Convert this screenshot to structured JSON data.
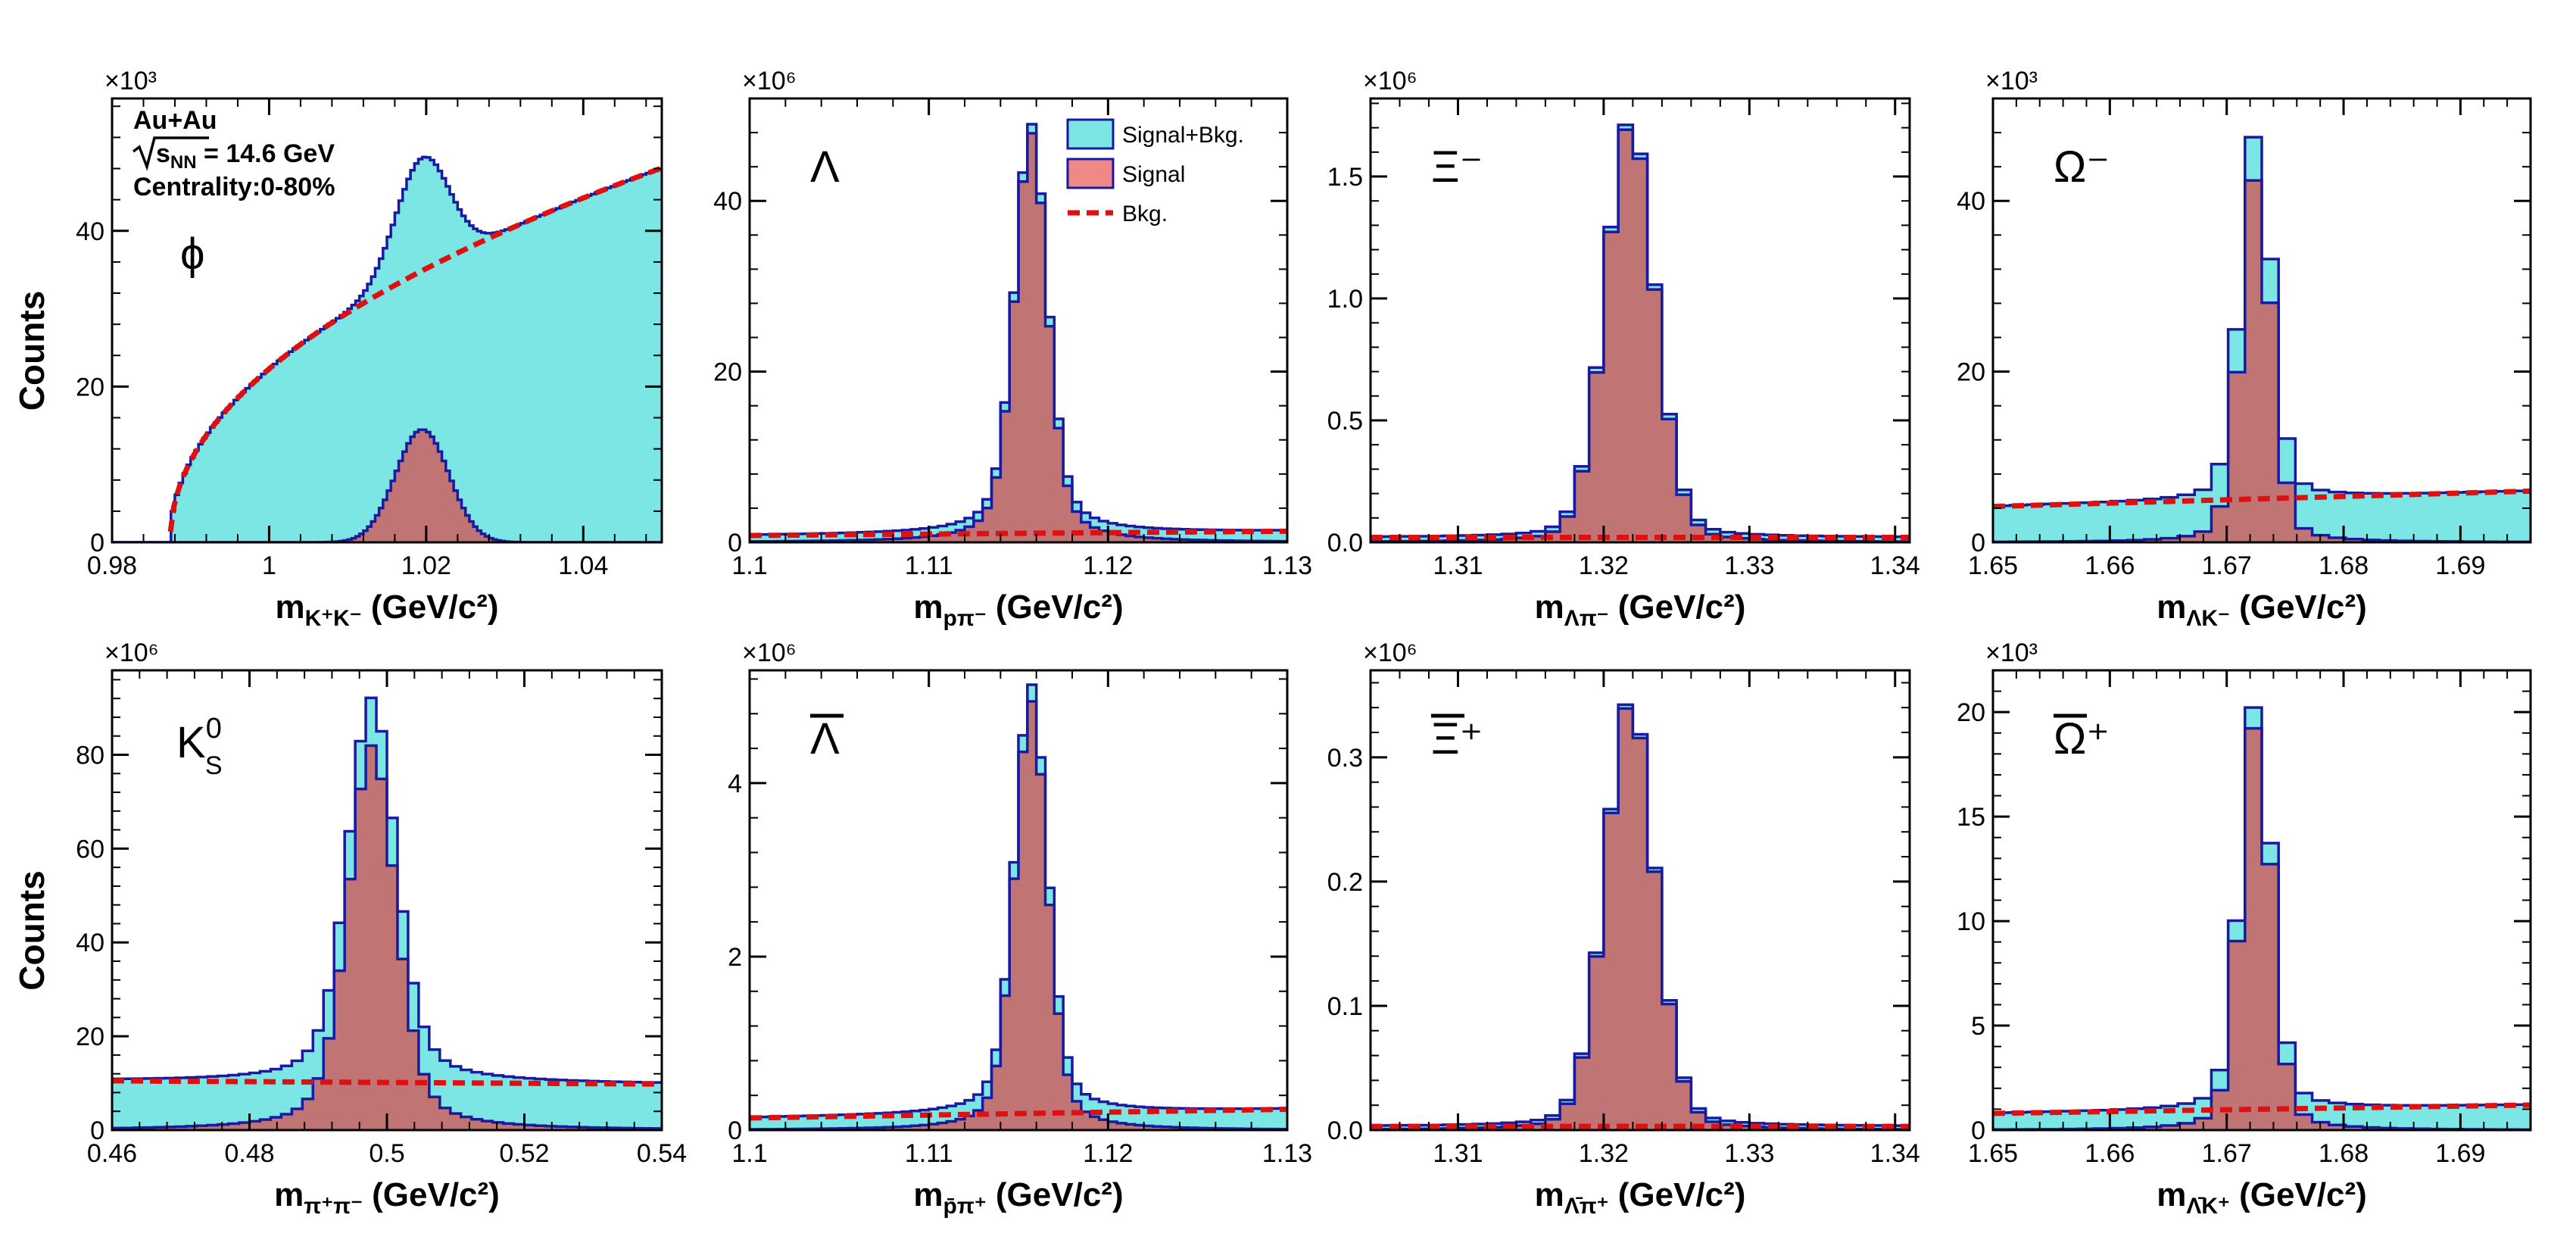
{
  "figure": {
    "legend": {
      "signal_bkg": "Signal+Bkg.",
      "signal": "Signal",
      "bkg": "Bkg."
    },
    "colors": {
      "signal_bkg_fill": "#7ce6e4",
      "signal_fill": "#c07474",
      "outline": "#1a1aa0",
      "bkg_line": "#dd1111",
      "legend_signal_fill": "#f08888"
    }
  },
  "chart_data": [
    {
      "id": "phi",
      "type": "histogram",
      "xlim": [
        0.98,
        1.05
      ],
      "ylim": [
        0,
        57
      ],
      "scale_label": "×10³",
      "xticks": [
        0.98,
        1,
        1.02,
        1.04
      ],
      "xtick_labels": [
        "0.98",
        "1",
        "1.02",
        "1.04"
      ],
      "yticks": [
        0,
        20,
        40
      ],
      "ytick_labels": [
        "0",
        "20",
        "40"
      ],
      "ylabel": "Counts",
      "xlabel": {
        "main": "m",
        "sub": "K⁺K⁻",
        "unit": " (GeV/c²)"
      },
      "particle": "ϕ",
      "info": {
        "line1": "Au+Au",
        "line2_root": "s",
        "line2_sub": "NN",
        "line2_rest": " = 14.6 GeV",
        "line3": "Centrality:0-80%"
      },
      "peak": {
        "mu": 1.0195,
        "sigma": 0.0034,
        "amp": 14.5
      },
      "background": {
        "shape": "sqrt",
        "x0": 0.9874,
        "k": 6.6,
        "p": 0.48,
        "endpoint": 50
      },
      "bins": 140
    },
    {
      "id": "lambda",
      "type": "histogram",
      "xlim": [
        1.1,
        1.13
      ],
      "ylim": [
        0,
        52
      ],
      "scale_label": "×10⁶",
      "xticks": [
        1.1,
        1.11,
        1.12,
        1.13
      ],
      "xtick_labels": [
        "1.1",
        "1.11",
        "1.12",
        "1.13"
      ],
      "yticks": [
        0,
        20,
        40
      ],
      "ytick_labels": [
        "0",
        "20",
        "40"
      ],
      "ylabel": "",
      "xlabel": {
        "main": "m",
        "sub": "pπ⁻",
        "unit": " (GeV/c²)"
      },
      "particle": "Λ",
      "peak": {
        "mu": 1.1157,
        "sigma": 0.0009,
        "gamma": 0.0012,
        "amp": 48,
        "frac_lor": 0.35
      },
      "background": {
        "shape": "linear",
        "y0": 0.8,
        "y1": 1.3
      },
      "bins": 60,
      "legend": true
    },
    {
      "id": "xi",
      "type": "histogram",
      "xlim": [
        1.304,
        1.341
      ],
      "ylim": [
        0,
        1.82
      ],
      "scale_label": "×10⁶",
      "xticks": [
        1.31,
        1.32,
        1.33,
        1.34
      ],
      "xtick_labels": [
        "1.31",
        "1.32",
        "1.33",
        "1.34"
      ],
      "yticks": [
        0,
        0.5,
        1,
        1.5
      ],
      "ytick_labels": [
        "0.0",
        "0.5",
        "1.0",
        "1.5"
      ],
      "ylabel": "",
      "xlabel": {
        "main": "m",
        "sub": "Λπ⁻",
        "unit": " (GeV/c²)"
      },
      "particle": "Ξ⁻",
      "peak": {
        "mu": 1.3218,
        "sigma": 0.0017,
        "gamma": 0.002,
        "amp": 1.72,
        "frac_lor": 0.15
      },
      "background": {
        "shape": "linear",
        "y0": 0.02,
        "y1": 0.02
      },
      "bins": 37
    },
    {
      "id": "omega",
      "type": "histogram",
      "xlim": [
        1.65,
        1.696
      ],
      "ylim": [
        0,
        52
      ],
      "scale_label": "×10³",
      "xticks": [
        1.65,
        1.66,
        1.67,
        1.68,
        1.69
      ],
      "xtick_labels": [
        "1.65",
        "1.66",
        "1.67",
        "1.68",
        "1.69"
      ],
      "yticks": [
        0,
        20,
        40
      ],
      "ytick_labels": [
        "0",
        "20",
        "40"
      ],
      "ylabel": "",
      "xlabel": {
        "main": "m",
        "sub": "ΛK⁻",
        "unit": " (GeV/c²)"
      },
      "particle": "Ω⁻",
      "peak": {
        "mu": 1.6725,
        "sigma": 0.0013,
        "gamma": 0.0018,
        "amp": 43,
        "frac_lor": 0.2
      },
      "background": {
        "shape": "linear",
        "y0": 4.2,
        "y1": 6.0
      },
      "bins": 32
    },
    {
      "id": "k0s",
      "type": "histogram",
      "xlim": [
        0.46,
        0.54
      ],
      "ylim": [
        0,
        98
      ],
      "scale_label": "×10⁶",
      "xticks": [
        0.46,
        0.48,
        0.5,
        0.52,
        0.54
      ],
      "xtick_labels": [
        "0.46",
        "0.48",
        "0.5",
        "0.52",
        "0.54"
      ],
      "yticks": [
        0,
        20,
        40,
        60,
        80
      ],
      "ytick_labels": [
        "0",
        "20",
        "40",
        "60",
        "80"
      ],
      "ylabel": "Counts",
      "xlabel": {
        "main": "m",
        "sub": "π⁺π⁻",
        "unit": " (GeV/c²)"
      },
      "particle": "K",
      "particle_sub": "S",
      "particle_sup": "0",
      "peak": {
        "mu": 0.4978,
        "sigma": 0.0034,
        "gamma": 0.0045,
        "amp": 82,
        "frac_lor": 0.35
      },
      "background": {
        "shape": "linear",
        "y0": 10.5,
        "y1": 9.8
      },
      "bins": 52
    },
    {
      "id": "antilambda",
      "type": "histogram",
      "xlim": [
        1.1,
        1.13
      ],
      "ylim": [
        0,
        5.3
      ],
      "scale_label": "×10⁶",
      "xticks": [
        1.1,
        1.11,
        1.12,
        1.13
      ],
      "xtick_labels": [
        "1.1",
        "1.11",
        "1.12",
        "1.13"
      ],
      "yticks": [
        0,
        2,
        4
      ],
      "ytick_labels": [
        "0",
        "2",
        "4"
      ],
      "ylabel": "",
      "xlabel": {
        "main": "m",
        "sub": "p̄π⁺",
        "unit": " (GeV/c²)"
      },
      "particle": "Λ",
      "overbar": true,
      "peak": {
        "mu": 1.1157,
        "sigma": 0.0009,
        "gamma": 0.0012,
        "amp": 4.95,
        "frac_lor": 0.3
      },
      "background": {
        "shape": "linear",
        "y0": 0.14,
        "y1": 0.24
      },
      "bins": 60
    },
    {
      "id": "antixi",
      "type": "histogram",
      "xlim": [
        1.304,
        1.341
      ],
      "ylim": [
        0,
        0.37
      ],
      "scale_label": "×10⁶",
      "xticks": [
        1.31,
        1.32,
        1.33,
        1.34
      ],
      "xtick_labels": [
        "1.31",
        "1.32",
        "1.33",
        "1.34"
      ],
      "yticks": [
        0,
        0.1,
        0.2,
        0.3
      ],
      "ytick_labels": [
        "0.0",
        "0.1",
        "0.2",
        "0.3"
      ],
      "ylabel": "",
      "xlabel": {
        "main": "m",
        "sub": "Λ̄π⁺",
        "unit": " (GeV/c²)"
      },
      "particle": "Ξ⁺",
      "overbar": true,
      "peak": {
        "mu": 1.3218,
        "sigma": 0.0017,
        "gamma": 0.002,
        "amp": 0.345,
        "frac_lor": 0.15
      },
      "background": {
        "shape": "linear",
        "y0": 0.003,
        "y1": 0.003
      },
      "bins": 37
    },
    {
      "id": "antiomega",
      "type": "histogram",
      "xlim": [
        1.65,
        1.696
      ],
      "ylim": [
        0,
        22
      ],
      "scale_label": "×10³",
      "xticks": [
        1.65,
        1.66,
        1.67,
        1.68,
        1.69
      ],
      "xtick_labels": [
        "1.65",
        "1.66",
        "1.67",
        "1.68",
        "1.69"
      ],
      "yticks": [
        0,
        5,
        10,
        15,
        20
      ],
      "ytick_labels": [
        "0",
        "5",
        "10",
        "15",
        "20"
      ],
      "ylabel": "",
      "xlabel": {
        "main": "m",
        "sub": "Λ̄K⁺",
        "unit": " (GeV/c²)"
      },
      "particle": "Ω⁺",
      "overbar": true,
      "peak": {
        "mu": 1.6725,
        "sigma": 0.0013,
        "gamma": 0.0018,
        "amp": 19.5,
        "frac_lor": 0.2
      },
      "background": {
        "shape": "linear",
        "y0": 0.8,
        "y1": 1.2
      },
      "bins": 32
    }
  ]
}
